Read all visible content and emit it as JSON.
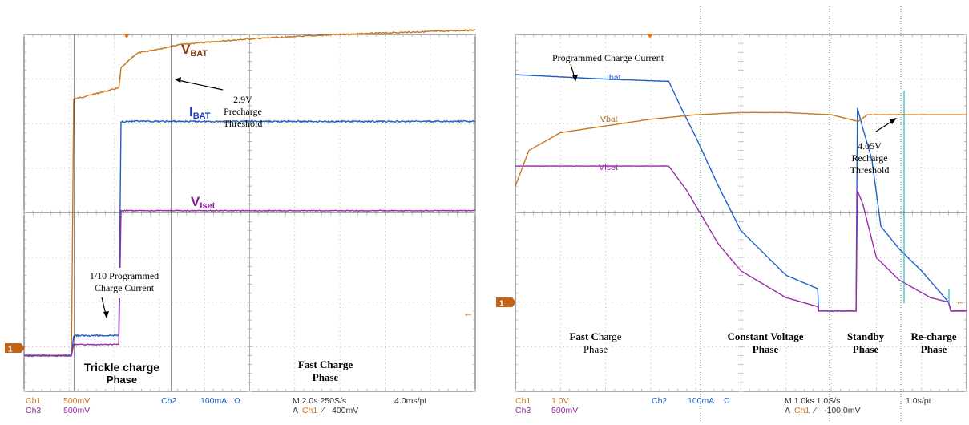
{
  "colors": {
    "ch1": "#c8791f",
    "ch2": "#1f5fc8",
    "ch3": "#9b2aa8",
    "grid": "#aaaaaa",
    "frame": "#555555",
    "marker": "#c46216",
    "cyan": "#28b7c8",
    "vline": "#2f9d3f"
  },
  "left": {
    "labels": {
      "vbat_main": "V",
      "vbat_sub": "BAT",
      "ibat_main": "I",
      "ibat_sub": "BAT",
      "viset_main": "V",
      "viset_sub": "Iset",
      "threshold": [
        "2.9V",
        "Precharge",
        "Threshold"
      ],
      "trickle_current": [
        "1/10 Programmed",
        "Charge Current"
      ],
      "trickle_phase": [
        "Trickle charge",
        "Phase"
      ],
      "fast_phase": [
        "Fast Charge",
        "Phase"
      ],
      "marker": "1"
    },
    "footer": {
      "ch1": "Ch1",
      "ch1_scale": "500mV",
      "ch3": "Ch3",
      "ch3_scale": "500mV",
      "ch2": "Ch2",
      "ch2_scale": "100mA",
      "omega": "Ω",
      "timebase": "M 2.0s 250S/s",
      "pt": "4.0ms/pt",
      "trigger_prefix": "A",
      "trigger_ch": "Ch1",
      "trigger_level": "400mV"
    }
  },
  "right": {
    "labels": {
      "programmed_current": "Programmed Charge Current",
      "ibat": "Ibat",
      "vbat": "Vbat",
      "viset": "VIset",
      "recharge_threshold": [
        "4.05V",
        "Recharge",
        "Threshold"
      ],
      "fast_phase": [
        "Fast C",
        "harge",
        "Phase"
      ],
      "cv_phase": [
        "Constant Voltage",
        "Phase"
      ],
      "standby_phase": [
        "Standby",
        "Phase"
      ],
      "recharge_phase": [
        "Re-charge",
        "Phase"
      ],
      "marker": "1"
    },
    "footer": {
      "ch1": "Ch1",
      "ch1_scale": "1.0V",
      "ch3": "Ch3",
      "ch3_scale": "500mV",
      "ch2": "Ch2",
      "ch2_scale": "100mA",
      "omega": "Ω",
      "timebase": "M 1.0ks 1.0S/s",
      "pt": "1.0s/pt",
      "trigger_prefix": "A",
      "trigger_ch": "Ch1",
      "trigger_level": "-100.0mV"
    }
  },
  "chart_data": [
    {
      "type": "line",
      "title": "",
      "xlabel": "",
      "ylabel": "",
      "x_divisions": 10,
      "y_divisions": 8,
      "time_per_div": "2.0s",
      "series": [
        {
          "name": "VBAT",
          "x": [
            0,
            1.05,
            1.1,
            2.1,
            2.15,
            2.5,
            3.5,
            5,
            7,
            10
          ],
          "y": [
            0.8,
            0.8,
            6.55,
            6.8,
            7.25,
            7.58,
            7.78,
            7.9,
            8.0,
            8.1
          ]
        },
        {
          "name": "IBAT",
          "x": [
            0,
            1.05,
            1.1,
            2.1,
            2.15,
            10
          ],
          "y": [
            0.8,
            0.8,
            1.25,
            1.25,
            6.05,
            6.05
          ]
        },
        {
          "name": "VIset",
          "x": [
            0,
            1.05,
            1.1,
            2.1,
            2.15,
            10
          ],
          "y": [
            0.8,
            0.8,
            1.05,
            1.05,
            4.05,
            4.05
          ]
        }
      ]
    },
    {
      "type": "line",
      "title": "",
      "xlabel": "",
      "ylabel": "",
      "x_divisions": 10,
      "y_divisions": 8,
      "time_per_div": "1.0ks",
      "series": [
        {
          "name": "Ibat",
          "x": [
            0,
            1,
            2,
            3.4,
            3.7,
            4.0,
            4.5,
            5,
            6,
            6.7,
            6.72,
            7.55,
            7.58,
            7.7,
            7.9,
            8.1,
            8.5,
            9,
            9.6,
            9.65,
            10
          ],
          "y": [
            7.1,
            7.05,
            7.0,
            6.95,
            6.3,
            5.7,
            4.6,
            3.6,
            2.6,
            2.3,
            1.8,
            1.8,
            6.35,
            5.9,
            5.2,
            3.7,
            3.2,
            2.7,
            2.0,
            1.8,
            1.8
          ]
        },
        {
          "name": "Vbat",
          "x": [
            0,
            0.3,
            1,
            2,
            3,
            4,
            5,
            6,
            7,
            7.6,
            7.8,
            10
          ],
          "y": [
            4.6,
            5.4,
            5.8,
            5.95,
            6.1,
            6.2,
            6.25,
            6.25,
            6.2,
            6.05,
            6.2,
            6.2
          ]
        },
        {
          "name": "VIset",
          "x": [
            0,
            1,
            3.4,
            3.8,
            4.5,
            5,
            6,
            6.7,
            6.72,
            7.55,
            7.58,
            7.7,
            8,
            8.5,
            9.2,
            9.6,
            9.65,
            10
          ],
          "y": [
            5.05,
            5.05,
            5.05,
            4.5,
            3.3,
            2.7,
            2.1,
            1.9,
            1.8,
            1.8,
            4.5,
            4.2,
            3.0,
            2.5,
            2.1,
            2.0,
            1.8,
            1.8
          ]
        }
      ]
    }
  ]
}
